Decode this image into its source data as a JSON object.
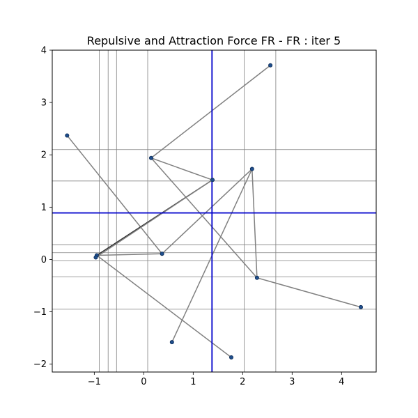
{
  "chart_data": {
    "type": "scatter",
    "title": "Repulsive and Attraction Force FR - FR : iter 5",
    "xlabel": "",
    "ylabel": "",
    "xlim": [
      -1.85,
      4.7
    ],
    "ylim": [
      -2.15,
      4.0
    ],
    "x_ticks": [
      -1,
      0,
      1,
      2,
      3,
      4
    ],
    "y_ticks": [
      -2,
      -1,
      0,
      1,
      2,
      3,
      4
    ],
    "x_tick_labels": [
      "−1",
      "0",
      "1",
      "2",
      "3",
      "4"
    ],
    "y_tick_labels": [
      "−2",
      "−1",
      "0",
      "1",
      "2",
      "3",
      "4"
    ],
    "grid": "partial",
    "gray_vertical_lines_x": [
      -0.9,
      -0.72,
      -0.55,
      0.08,
      2.03,
      2.67
    ],
    "gray_horizontal_lines_y": [
      2.1,
      1.5,
      0.28,
      0.13,
      -0.02,
      -0.33,
      -0.95
    ],
    "blue_vertical_line_x": 1.38,
    "blue_horizontal_line_y": 0.89,
    "nodes": [
      {
        "id": "n0",
        "x": -1.55,
        "y": 2.37
      },
      {
        "id": "n1",
        "x": 2.56,
        "y": 3.71
      },
      {
        "id": "n2",
        "x": 0.15,
        "y": 1.94
      },
      {
        "id": "n3",
        "x": 1.39,
        "y": 1.52
      },
      {
        "id": "n4",
        "x": 2.19,
        "y": 1.73
      },
      {
        "id": "n5",
        "x": -0.95,
        "y": 0.08
      },
      {
        "id": "n6",
        "x": -0.97,
        "y": 0.04
      },
      {
        "id": "n7",
        "x": 0.37,
        "y": 0.11
      },
      {
        "id": "n8",
        "x": 2.29,
        "y": -0.35
      },
      {
        "id": "n9",
        "x": 4.39,
        "y": -0.91
      },
      {
        "id": "n10",
        "x": 0.57,
        "y": -1.58
      },
      {
        "id": "n11",
        "x": 1.77,
        "y": -1.87
      }
    ],
    "edges": [
      {
        "from": "n0",
        "to": "n7",
        "dark": false
      },
      {
        "from": "n7",
        "to": "n4",
        "dark": false
      },
      {
        "from": "n7",
        "to": "n5",
        "dark": false
      },
      {
        "from": "n4",
        "to": "n10",
        "dark": false
      },
      {
        "from": "n4",
        "to": "n8",
        "dark": false
      },
      {
        "from": "n2",
        "to": "n1",
        "dark": false
      },
      {
        "from": "n2",
        "to": "n3",
        "dark": false
      },
      {
        "from": "n2",
        "to": "n8",
        "dark": false
      },
      {
        "from": "n3",
        "to": "n5",
        "dark": true
      },
      {
        "from": "n3",
        "to": "n6",
        "dark": false
      },
      {
        "from": "n5",
        "to": "n11",
        "dark": false
      },
      {
        "from": "n8",
        "to": "n9",
        "dark": false
      }
    ],
    "colors": {
      "grid_gray": "#808080",
      "force_blue": "#0000cc",
      "edge_gray": "#808080",
      "edge_dark": "#333333",
      "node_fill": "#1f4e8c",
      "node_edge": "#0a2a55"
    }
  }
}
